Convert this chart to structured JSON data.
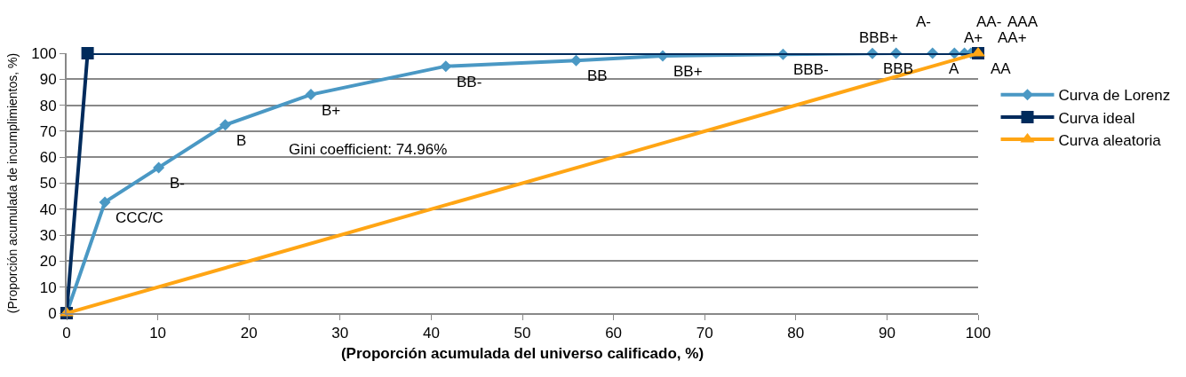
{
  "chart_data": {
    "type": "line",
    "xlabel": "(Proporción acumulada del universo calificado, %)",
    "ylabel": "(Proporción acumulada de incumplimientos, %)",
    "xlim": [
      0,
      100
    ],
    "xticks": [
      0,
      10,
      20,
      30,
      40,
      50,
      60,
      70,
      80,
      90,
      100
    ],
    "ylim": [
      0,
      100
    ],
    "yticks": [
      0,
      10,
      20,
      30,
      40,
      50,
      60,
      70,
      80,
      90,
      100
    ],
    "grid": "y",
    "legend": "right",
    "line_style": "solid",
    "annotations": [
      "Gini coefficient: 74.96%"
    ],
    "series": [
      {
        "name": "Curva de Lorenz",
        "color": "#4a98c4",
        "marker": "diamond",
        "x": [
          0,
          4.2,
          10.1,
          17.4,
          26.8,
          41.6,
          55.9,
          65.4,
          78.6,
          88.4,
          91,
          95,
          97.4,
          98.5,
          99.2,
          99.6,
          99.9,
          100
        ],
        "values": [
          0,
          42.7,
          56,
          72.4,
          84.1,
          95,
          97.2,
          99,
          99.6,
          99.9,
          100,
          100,
          100,
          100,
          100,
          100,
          100,
          100
        ],
        "value_labels": [
          null,
          "CCC/C",
          "B-",
          "B",
          "B+",
          "BB-",
          "BB",
          "BB+",
          "BBB-",
          "BBB",
          "BBB+",
          "A-",
          "A",
          "A+",
          "AA-",
          "AA",
          "AA+",
          "AAA"
        ]
      },
      {
        "name": "Curva ideal",
        "color": "#002b5c",
        "marker": "square",
        "x": [
          0,
          2.3,
          100
        ],
        "values": [
          0,
          100,
          100
        ]
      },
      {
        "name": "Curva aleatoria",
        "color": "#ffa514",
        "marker": "triangle",
        "x": [
          0,
          100
        ],
        "values": [
          0,
          100
        ]
      }
    ]
  }
}
